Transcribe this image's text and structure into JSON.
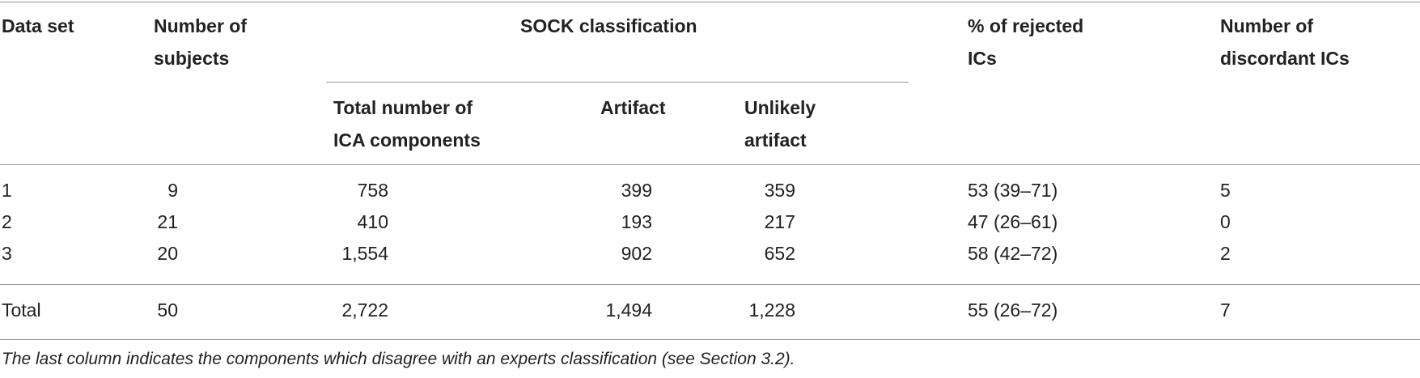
{
  "table": {
    "headers": {
      "data_set": "Data set",
      "num_subjects": [
        "Number of",
        "subjects"
      ],
      "sock_group": "SOCK classification",
      "total_components": [
        "Total number of",
        "ICA components"
      ],
      "artifact": "Artifact",
      "unlikely_artifact": [
        "Unlikely",
        "artifact"
      ],
      "rejected": [
        "% of rejected",
        "ICs"
      ],
      "discordant": [
        "Number of",
        "discordant ICs"
      ]
    },
    "rows": [
      {
        "data_set": "1",
        "subjects": "9",
        "total": "758",
        "artifact": "399",
        "unlikely": "359",
        "rejected": "53 (39–71)",
        "discordant": "5"
      },
      {
        "data_set": "2",
        "subjects": "21",
        "total": "410",
        "artifact": "193",
        "unlikely": "217",
        "rejected": "47 (26–61)",
        "discordant": "0"
      },
      {
        "data_set": "3",
        "subjects": "20",
        "total": "1,554",
        "artifact": "902",
        "unlikely": "652",
        "rejected": "58 (42–72)",
        "discordant": "2"
      }
    ],
    "total_row": {
      "data_set": "Total",
      "subjects": "50",
      "total": "2,722",
      "artifact": "1,494",
      "unlikely": "1,228",
      "rejected": "55 (26–72)",
      "discordant": "7"
    }
  },
  "footnote": "The last column indicates the components which disagree with an experts classification (see Section 3.2)."
}
